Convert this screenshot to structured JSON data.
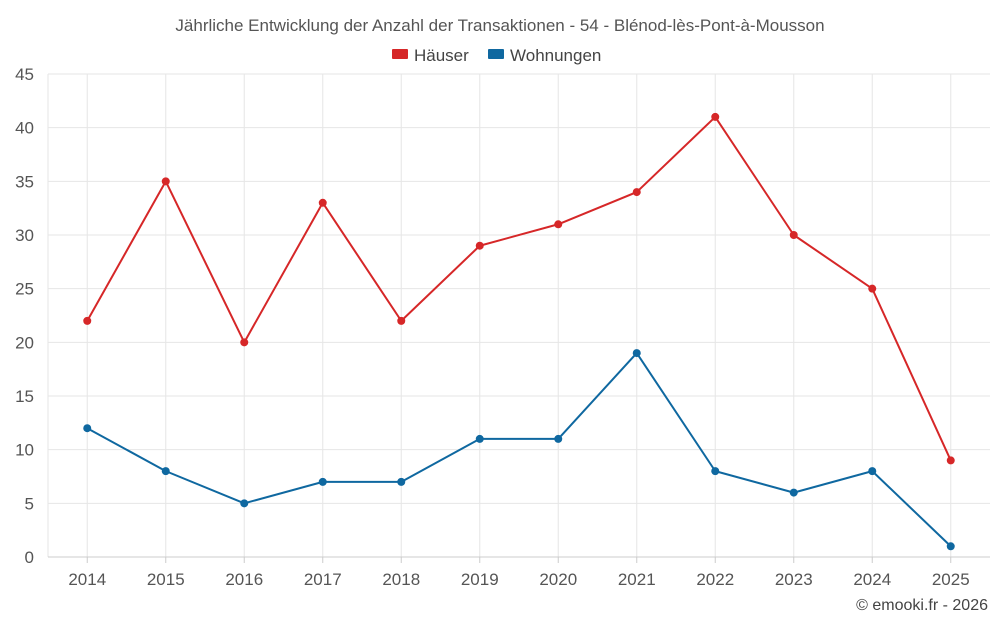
{
  "chart_data": {
    "type": "line",
    "title": "Jährliche Entwicklung der Anzahl der Transaktionen - 54 - Blénod-lès-Pont-à-Mousson",
    "categories": [
      "2014",
      "2015",
      "2016",
      "2017",
      "2018",
      "2019",
      "2020",
      "2021",
      "2022",
      "2023",
      "2024",
      "2025"
    ],
    "series": [
      {
        "name": "Häuser",
        "color": "#d62728",
        "values": [
          22,
          35,
          20,
          33,
          22,
          29,
          31,
          34,
          41,
          30,
          25,
          9
        ]
      },
      {
        "name": "Wohnungen",
        "color": "#0f68a0",
        "values": [
          12,
          8,
          5,
          7,
          7,
          11,
          11,
          19,
          8,
          6,
          8,
          1
        ]
      }
    ],
    "ylim": [
      0,
      45
    ],
    "yticks": [
      0,
      5,
      10,
      15,
      20,
      25,
      30,
      35,
      40,
      45
    ],
    "grid": true,
    "legend": "top-center",
    "xlabel": "",
    "ylabel": ""
  },
  "credit": "© emooki.fr - 2026"
}
